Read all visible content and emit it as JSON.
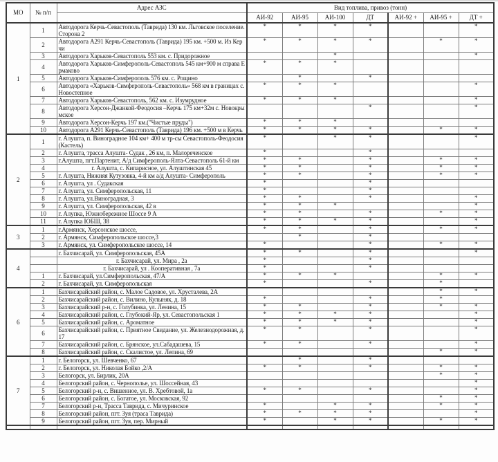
{
  "colors": {
    "border_thin": "#7a7a7a",
    "border_thick": "#3a3a3a",
    "text": "#1c1c1c",
    "background": "#fdfdfd"
  },
  "asterisk": "*",
  "header": {
    "mo": "МО",
    "num": "№ п/п",
    "address": "Адрес АЗС",
    "fuel_group": "Вид топлива, привоз (тонн)",
    "fuel_types": [
      "АИ-92",
      "АИ-95",
      "АИ-100",
      "ДТ",
      "АИ-92 +",
      "АИ-95 +",
      "ДТ +"
    ]
  },
  "sections": [
    {
      "mo": "1",
      "rows": [
        {
          "num": "1",
          "address": "Автодорога Керчь-Севастополь (Таврида) 130 км. Льговское поселение.Сторона 2",
          "fuels": [
            1,
            1,
            1,
            1,
            0,
            0,
            1
          ]
        },
        {
          "num": "2",
          "address": "Автодорога А291 Керчь-Севастополь (Таврида) 195 км. +500 м. Из Керчи",
          "fuels": [
            1,
            1,
            1,
            1,
            0,
            1,
            1
          ]
        },
        {
          "num": "3",
          "address": "Автодорога Харьков-Севастополь 553 км. с. Придорожное",
          "fuels": [
            0,
            0,
            1,
            0,
            0,
            0,
            1
          ]
        },
        {
          "num": "4",
          "address": "Автодорога Харьков-Симферополь-Севастополь 545 км+900 м справа Ермаково",
          "fuels": [
            1,
            1,
            1,
            0,
            0,
            0,
            0
          ]
        },
        {
          "num": "5",
          "address": "Автодорога Харьков-Симферополь 576 км. с. Рощино",
          "fuels": [
            0,
            1,
            0,
            1,
            0,
            0,
            0
          ]
        },
        {
          "num": "6",
          "address": "Автодорога «Харьков-Симферополь-Севастополь» 568 км в границах с. Новостепное",
          "fuels": [
            1,
            1,
            1,
            0,
            0,
            0,
            1
          ]
        },
        {
          "num": "7",
          "address": "Автодорога Харьков-Севастополь, 562 км. с. Изумрудное",
          "fuels": [
            1,
            1,
            1,
            0,
            0,
            0,
            1
          ]
        },
        {
          "num": "8",
          "address": "Автодорога Херсон-Джанкой-Феодосия –Керчь 175 км+32м с. Новокрымское",
          "fuels": [
            0,
            0,
            0,
            1,
            0,
            0,
            1
          ]
        },
        {
          "num": "9",
          "address": "Автодорога Херсон-Керчь 197 км.(\"Чистые пруды\")",
          "fuels": [
            1,
            1,
            1,
            0,
            0,
            0,
            0
          ]
        },
        {
          "num": "10",
          "address": "Автодорога А291 Керчь-Севастополь (Таврида) 196 км. +500 м в Керчь",
          "fuels": [
            1,
            1,
            1,
            1,
            0,
            1,
            1
          ]
        }
      ]
    },
    {
      "mo": "2",
      "rows": [
        {
          "num": "1",
          "address": "г. Алушта, п. Виноградное 104 км+ 400 м тр-сы Севастополь-Феодосия (Кастель)",
          "fuels": [
            1,
            0,
            1,
            1,
            0,
            0,
            1
          ]
        },
        {
          "num": "2",
          "address": "г. Алушта, трасса Алушта- Судак , 26 км, п. Малореченское",
          "fuels": [
            1,
            0,
            0,
            1,
            0,
            0,
            0
          ]
        },
        {
          "num": "3",
          "address": "г.Алушта, пгт.Партенит, А/д Симферополь-Ялта-Севастополь 61-й км",
          "fuels": [
            1,
            1,
            0,
            1,
            0,
            1,
            1
          ]
        },
        {
          "num": "4",
          "address": "г. Алушта, с. Кипарисное, ул. Алуштинская 45",
          "align": "center",
          "fuels": [
            1,
            1,
            0,
            1,
            0,
            1,
            1
          ]
        },
        {
          "num": "5",
          "address": "г. Алушта, Нижняя Кутузовка, 4-й км а/д Алушта- Симферополь",
          "fuels": [
            1,
            1,
            0,
            1,
            0,
            1,
            1
          ]
        },
        {
          "num": "6",
          "address": "г. Алушта, ул . Судакская",
          "fuels": [
            1,
            0,
            0,
            1,
            0,
            0,
            0
          ]
        },
        {
          "num": "7",
          "address": "г. Алушта, ул. Симферопольская, 11",
          "fuels": [
            1,
            0,
            0,
            1,
            0,
            0,
            0
          ]
        },
        {
          "num": "8",
          "address": "г. Алушта, ул.Виноградная, 3",
          "fuels": [
            1,
            1,
            0,
            1,
            0,
            0,
            1
          ]
        },
        {
          "num": "9",
          "address": "г. Алушта, ул. Симферопольская, 42 в",
          "fuels": [
            1,
            1,
            1,
            0,
            0,
            0,
            1
          ]
        },
        {
          "num": "10",
          "address": "г. Алупка, Южнобережное Шоссе 9 А",
          "fuels": [
            1,
            1,
            0,
            1,
            0,
            1,
            1
          ]
        },
        {
          "num": "11",
          "address": "г. Алупка ЮБШ, 38",
          "fuels": [
            1,
            1,
            1,
            1,
            0,
            0,
            1
          ]
        }
      ]
    },
    {
      "mo": "3",
      "rows": [
        {
          "num": "1",
          "address": "г.Армянск, Херсонское шоссе,",
          "fuels": [
            1,
            1,
            0,
            1,
            0,
            1,
            1
          ]
        },
        {
          "num": "2",
          "address": "г. Армянск, Симферопольское шоссе,3",
          "fuels": [
            0,
            1,
            0,
            1,
            0,
            0,
            0
          ]
        },
        {
          "num": "3",
          "address": "г. Армянск, ул. Симферопольское шоссе, 14",
          "fuels": [
            1,
            0,
            0,
            1,
            0,
            1,
            1
          ]
        }
      ]
    },
    {
      "mo": "4",
      "rows": [
        {
          "num": "",
          "address": "г. Бахчисарай, ул. Симферопольская, 45А",
          "fuels": [
            1,
            1,
            0,
            1,
            0,
            0,
            1
          ]
        },
        {
          "num": "",
          "address": "г. Бахчисарай, ул. Мира , 2а",
          "align": "center",
          "fuels": [
            1,
            0,
            0,
            1,
            0,
            0,
            0
          ]
        },
        {
          "num": "",
          "address": "г. Бахчисарай, ул . Кооперативная , 7а",
          "align": "center",
          "fuels": [
            1,
            0,
            0,
            1,
            0,
            0,
            0
          ]
        },
        {
          "num": "1",
          "address": "г. Бахчисарай, ул.Симферопольская, 47/А",
          "fuels": [
            1,
            1,
            1,
            0,
            0,
            1,
            1
          ]
        },
        {
          "num": "2",
          "address": "г. Бахчисарай, ул. Симферопольская",
          "fuels": [
            1,
            0,
            0,
            1,
            0,
            1,
            0
          ]
        }
      ]
    },
    {
      "mo": "6",
      "rows": [
        {
          "num": "1",
          "address": "Бахчисарайский район, с. Малое Садовое, ул. Хрусталева, 2А",
          "fuels": [
            0,
            0,
            0,
            0,
            0,
            1,
            1
          ]
        },
        {
          "num": "2",
          "address": "Бахчисарайский район, с. Вилино, Кулыняк, д. 18",
          "fuels": [
            1,
            0,
            0,
            1,
            0,
            1,
            0
          ]
        },
        {
          "num": "3",
          "address": "Бахчисарайский р-н, с. Голубинка, ул. Ленина, 15",
          "fuels": [
            1,
            1,
            0,
            1,
            0,
            1,
            1
          ]
        },
        {
          "num": "4",
          "address": "Бахчисарайский район, с. Глубокий-Яр, ул. Севастопольская 1",
          "fuels": [
            1,
            1,
            1,
            1,
            0,
            0,
            1
          ]
        },
        {
          "num": "5",
          "address": "Бахчисарайский район, с. Ароматное",
          "fuels": [
            1,
            1,
            1,
            1,
            0,
            0,
            1
          ]
        },
        {
          "num": "6",
          "address": "Бахчисарайский район, с. Приятное Свидание, ул. Железнодорожная, д.17",
          "fuels": [
            1,
            1,
            0,
            1,
            0,
            0,
            1
          ]
        },
        {
          "num": "7",
          "address": "Бахчисарайский район, с. Брянское, ул.Сабадашева, 15",
          "fuels": [
            1,
            1,
            0,
            1,
            0,
            0,
            1
          ]
        },
        {
          "num": "8",
          "address": "Бахчисарайский район, с. Скалистое, ул. Лепина, 69",
          "fuels": [
            0,
            0,
            0,
            0,
            0,
            1,
            1
          ]
        }
      ]
    },
    {
      "mo": "7",
      "rows": [
        {
          "num": "1",
          "address": "г. Белогорск, ул. Шевченко, 67",
          "fuels": [
            0,
            1,
            0,
            1,
            0,
            0,
            0
          ]
        },
        {
          "num": "2",
          "address": "г. Белогорск, ул. Николая Бойко ,2/А",
          "fuels": [
            1,
            1,
            0,
            1,
            0,
            1,
            1
          ]
        },
        {
          "num": "3",
          "address": "Белогорск, ул. Бирлик, 20А",
          "fuels": [
            0,
            0,
            0,
            0,
            0,
            1,
            1
          ]
        },
        {
          "num": "4",
          "address": "Белогорский район, с. Чернополье, ул. Шоссейная, 43",
          "fuels": [
            0,
            0,
            0,
            0,
            0,
            0,
            1
          ]
        },
        {
          "num": "5",
          "address": "Белогорский р-н, с. Вишенное, ул. В. Хребтовой, 1а",
          "fuels": [
            1,
            1,
            0,
            1,
            0,
            0,
            1
          ]
        },
        {
          "num": "6",
          "address": "Белогорский район, с. Богатое, ул. Московская, 92",
          "fuels": [
            0,
            0,
            0,
            0,
            0,
            1,
            1
          ]
        },
        {
          "num": "7",
          "address": "Белогорский р-н, Трасса Таврида, с. Мичуринское",
          "fuels": [
            1,
            0,
            1,
            1,
            0,
            1,
            1
          ]
        },
        {
          "num": "8",
          "address": "Белогорский район, пгт. Зуя (траса Таврида)",
          "fuels": [
            1,
            1,
            1,
            1,
            0,
            0,
            1
          ]
        },
        {
          "num": "9",
          "address": "Белогорский район, пгт. Зуя, пер. Мирный",
          "fuels": [
            1,
            0,
            1,
            1,
            0,
            1,
            1
          ]
        }
      ]
    }
  ]
}
